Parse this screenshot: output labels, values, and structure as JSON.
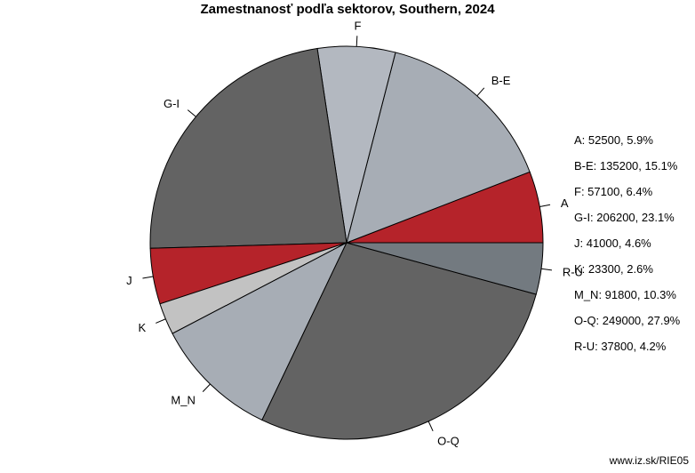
{
  "chart_data": {
    "type": "pie",
    "title": "Zamestnanosť podľa sektorov, Southern, 2024",
    "slices": [
      {
        "label": "A",
        "value": 52500,
        "percent": 5.9,
        "color": "#b5232a",
        "legend": "A: 52500, 5.9%"
      },
      {
        "label": "B-E",
        "value": 135200,
        "percent": 15.1,
        "color": "#a7adb5",
        "legend": "B-E: 135200, 15.1%"
      },
      {
        "label": "F",
        "value": 57100,
        "percent": 6.4,
        "color": "#b3b8c0",
        "legend": "F: 57100, 6.4%"
      },
      {
        "label": "G-I",
        "value": 206200,
        "percent": 23.1,
        "color": "#636363",
        "legend": "G-I: 206200, 23.1%"
      },
      {
        "label": "J",
        "value": 41000,
        "percent": 4.6,
        "color": "#b5232a",
        "legend": "J: 41000, 4.6%"
      },
      {
        "label": "K",
        "value": 23300,
        "percent": 2.6,
        "color": "#c2c2c2",
        "legend": "K: 23300, 2.6%"
      },
      {
        "label": "M_N",
        "value": 91800,
        "percent": 10.3,
        "color": "#a7adb5",
        "legend": "M_N: 91800, 10.3%"
      },
      {
        "label": "O-Q",
        "value": 249000,
        "percent": 27.9,
        "color": "#636363",
        "legend": "O-Q: 249000, 27.9%"
      },
      {
        "label": "R-U",
        "value": 37800,
        "percent": 4.2,
        "color": "#737a80",
        "legend": "R-U: 37800, 4.2%"
      }
    ],
    "start": "3 o'clock",
    "direction": "counterclockwise",
    "legend_position": "right"
  },
  "source": "www.iz.sk/RIE05"
}
